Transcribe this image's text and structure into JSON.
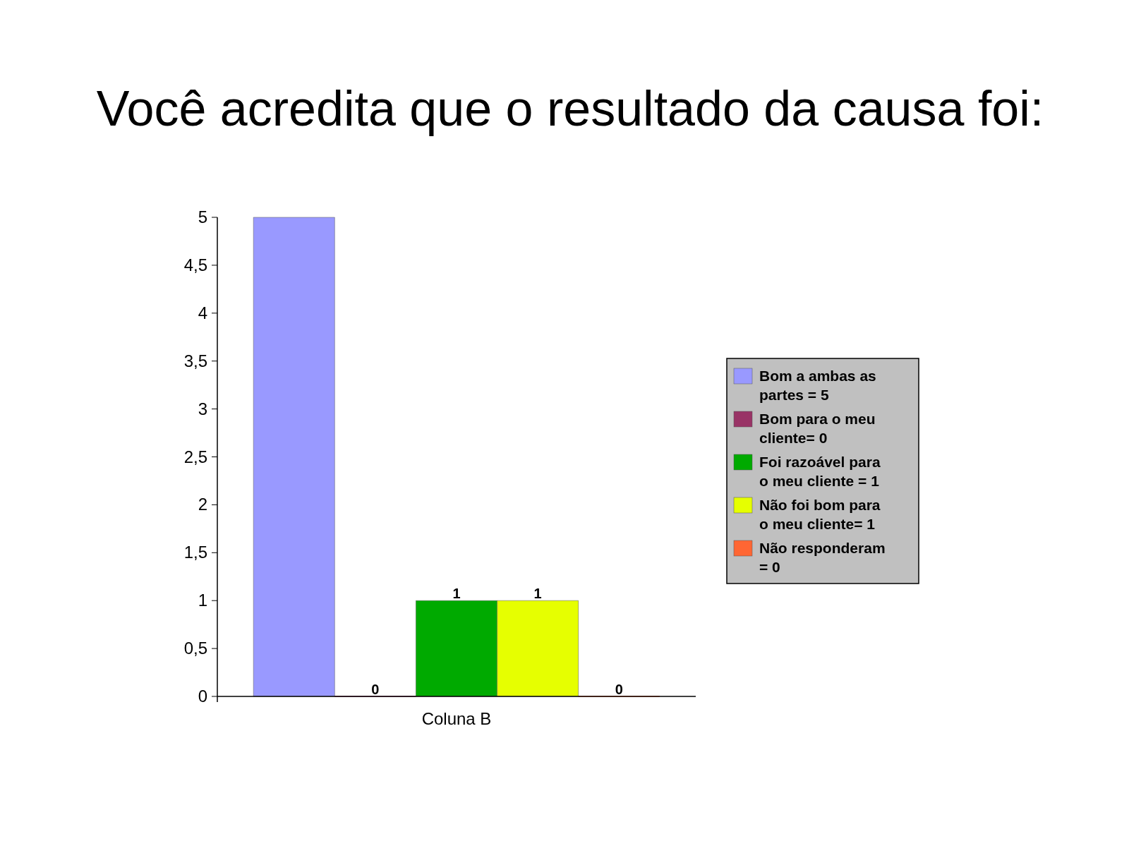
{
  "chart_data": {
    "type": "bar",
    "title": "Você acredita que o resultado da causa foi:",
    "categories": [
      "Coluna B"
    ],
    "series": [
      {
        "name": "Bom a ambas as partes = 5",
        "color": "#9999ff",
        "values": [
          5
        ],
        "value_labels": [
          null
        ]
      },
      {
        "name": "Bom para o meu cliente= 0",
        "color": "#993366",
        "values": [
          0
        ],
        "value_labels": [
          "0"
        ]
      },
      {
        "name": "Foi razoável para o meu cliente = 1",
        "color": "#00aa00",
        "values": [
          1
        ],
        "value_labels": [
          "1"
        ]
      },
      {
        "name": "Não foi bom para o meu cliente= 1",
        "color": "#e6ff00",
        "values": [
          1
        ],
        "value_labels": [
          "1"
        ]
      },
      {
        "name": "Não responderam = 0",
        "color": "#ff6633",
        "values": [
          0
        ],
        "value_labels": [
          "0"
        ]
      }
    ],
    "ylim": [
      0,
      5
    ],
    "yticks": [
      0,
      {
        "value": 0.5,
        "label": "0,5"
      },
      1,
      {
        "value": 1.5,
        "label": "1,5"
      },
      2,
      {
        "value": 2.5,
        "label": "2,5"
      },
      3,
      {
        "value": 3.5,
        "label": "3,5"
      },
      4,
      {
        "value": 4.5,
        "label": "4,5"
      },
      5
    ],
    "grid": false,
    "legend": "right"
  }
}
